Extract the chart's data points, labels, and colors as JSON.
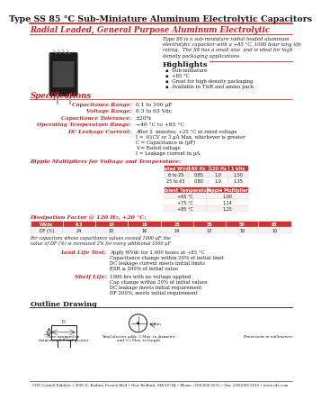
{
  "title_bold": "Type SS",
  "title_rest": " 85 °C Sub-Miniature Aluminum Electrolytic Capacitors",
  "subtitle": "Radial Leaded, General Purpose Aluminum Electrolytic",
  "description_lines": [
    "Type SS is a sub-miniature radial leaded aluminum",
    "electrolytic capacitor with a +85 °C, 1000 hour long life",
    "rating.  The SS has a small size  and is ideal for high",
    "density packaging applications."
  ],
  "highlights_title": "Highlights",
  "highlights": [
    "Sub-miniature",
    "+85 °C",
    "Great for high-density packaging",
    "Available in T&R and ammo pack"
  ],
  "specs_title": "Specifications",
  "spec_labels": [
    "Capacitance Range:",
    "Voltage Range:",
    "Capacitance Tolerance:",
    "Operating Temperature Range:",
    "DC Leakage Current:"
  ],
  "spec_values": [
    "0.1 to 100 µF",
    "6.3 to 63 Vdc",
    "±20%",
    "−40 °C to +85 °C",
    ""
  ],
  "dc_leakage_lines": [
    "After 2  minutes, +25 °C at rated voltage",
    "I = .01CV or 3 µA Max, whichever is greater",
    "C = Capacitance in (µF)",
    "V = Rated voltage",
    "I = Leakage current in µA"
  ],
  "ripple_title": "Ripple Multipliers for Voltage and Temperature:",
  "ripple_table1_headers": [
    "Rated\nWVdc",
    "60 Hz",
    "120 Hz",
    "1 kHz"
  ],
  "ripple_table1_data": [
    [
      "6 to 25",
      "0.85",
      "1.0",
      "1.50"
    ],
    [
      "25 to 63",
      "0.80",
      "1.0",
      "1.35"
    ]
  ],
  "ripple_table2_headers": [
    "Ambient\nTemperature",
    "Ripple\nMultiplier"
  ],
  "ripple_table2_data": [
    [
      "+65 °C",
      "1.00"
    ],
    [
      "+75 °C",
      "1.14"
    ],
    [
      "+85 °C",
      "1.25"
    ]
  ],
  "df_label": "Dissipation Factor @ 120 Hz, +20 °C:",
  "df_headers": [
    "WVdc",
    "6.3",
    "10",
    "16",
    "25",
    "35",
    "50",
    "63"
  ],
  "df_row": [
    "DF (%)",
    "24",
    "20",
    "16",
    "14",
    "12",
    "10",
    "10"
  ],
  "df_note_lines": [
    "For capacitors whose capacitance values exceed 1000 µF, the",
    "value of DF (%) is increased 2% for every additional 1000 µF"
  ],
  "lead_life_label": "Lead Life Test:",
  "lead_life_lines": [
    "Apply WVdc for 1,000 hours at +85 °C",
    "Capacitance change within 20% of initial limit",
    "DC leakage current meets initial limits",
    "ESR ≤ 200% of initial value"
  ],
  "shelf_life_label": "Shelf Life:",
  "shelf_life_lines": [
    "1000 hrs with no voltage applied",
    "Cap change within 20% of initial values",
    "DC leakage meets initial requirement",
    "DF 200%, meets initial requirement"
  ],
  "outline_title": "Outline Drawing",
  "footer": "CDE Cornell Dubilier • 3605 E. Rodney French Blvd • New Bedford, MA 02744 • Phone: (508)996-8561 • Fax: (508)996-3830 • www.cde.com",
  "RED": "#cc2222",
  "DARK": "#1a1a1a",
  "TABLE_RED": "#cc3333",
  "TABLE_LIGHT": "#f8f0f0"
}
